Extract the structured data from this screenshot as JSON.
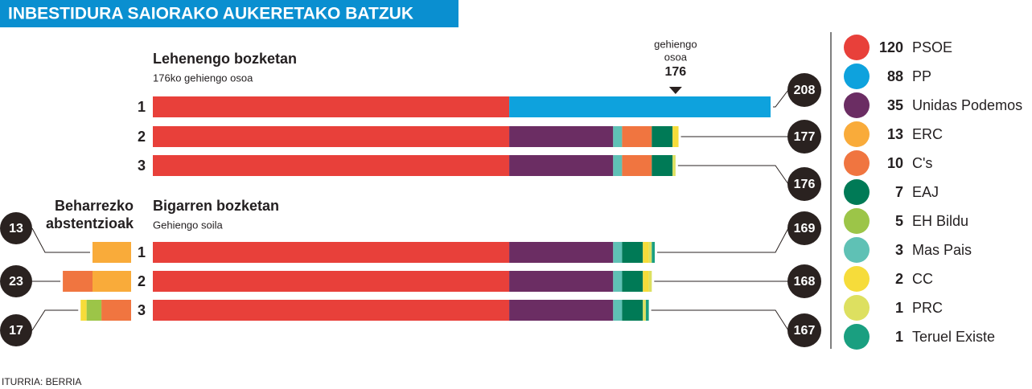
{
  "chart_data": {
    "type": "bar",
    "title": "INBESTIDURA SAIORAKO AUKERETAKO BATZUK",
    "source": "ITURRIA: BERRIA",
    "xlim": [
      0,
      208
    ],
    "majority": {
      "label": [
        "gehiengo",
        "osoa"
      ],
      "value": 176
    },
    "groups": [
      {
        "title": "Lehenengo bozketan",
        "subtitle": "176ko gehiengo osoa",
        "categories": [
          "1",
          "2",
          "3"
        ],
        "totals": [
          208,
          177,
          176
        ]
      },
      {
        "title": "Bigarren bozketan",
        "subtitle": "Gehiengo soila",
        "categories": [
          "1",
          "2",
          "3"
        ],
        "totals": [
          169,
          168,
          167
        ],
        "abstention_title": [
          "Beharrezko",
          "abstentzioak"
        ],
        "abstention_totals": [
          13,
          23,
          17
        ]
      }
    ],
    "series": [
      {
        "name": "PSOE",
        "color": "#e8403a",
        "seats": 120,
        "values": [
          120,
          120,
          120,
          120,
          120,
          120
        ],
        "abstentions": [
          null,
          null,
          null
        ]
      },
      {
        "name": "PP",
        "color": "#0ea2dd",
        "seats": 88,
        "values": [
          88,
          null,
          null,
          null,
          null,
          null
        ],
        "abstentions": [
          null,
          null,
          null
        ]
      },
      {
        "name": "Unidas Podemos",
        "color": "#6b2d63",
        "seats": 35,
        "values": [
          null,
          35,
          35,
          35,
          35,
          35
        ],
        "abstentions": [
          null,
          null,
          null
        ]
      },
      {
        "name": "Mas Pais",
        "color": "#5fc1b5",
        "seats": 3,
        "values": [
          null,
          3,
          3,
          3,
          3,
          3
        ],
        "abstentions": [
          null,
          null,
          null
        ]
      },
      {
        "name": "ERC",
        "color": "#f9ab3a",
        "seats": 13,
        "values": [
          null,
          null,
          null,
          null,
          null,
          null
        ],
        "abstentions": [
          13,
          13,
          null
        ]
      },
      {
        "name": "C's",
        "color": "#f07540",
        "seats": 10,
        "values": [
          null,
          10,
          10,
          null,
          null,
          null
        ],
        "abstentions": [
          null,
          10,
          10
        ]
      },
      {
        "name": "EAJ",
        "color": "#007a56",
        "seats": 7,
        "values": [
          null,
          7,
          7,
          7,
          7,
          7
        ],
        "abstentions": [
          null,
          null,
          null
        ]
      },
      {
        "name": "EH Bildu",
        "color": "#9cc548",
        "seats": 5,
        "values": [
          null,
          null,
          null,
          null,
          null,
          null
        ],
        "abstentions": [
          null,
          null,
          5
        ]
      },
      {
        "name": "CC",
        "color": "#f6dc3a",
        "seats": 2,
        "values": [
          null,
          2,
          null,
          2,
          2,
          null
        ],
        "abstentions": [
          null,
          null,
          2
        ]
      },
      {
        "name": "PRC",
        "color": "#dde060",
        "seats": 1,
        "values": [
          null,
          null,
          1,
          1,
          1,
          1
        ],
        "abstentions": [
          null,
          null,
          null
        ]
      },
      {
        "name": "Teruel Existe",
        "color": "#1a9f80",
        "seats": 1,
        "values": [
          null,
          null,
          null,
          1,
          null,
          1
        ],
        "abstentions": [
          null,
          null,
          null
        ]
      }
    ]
  }
}
